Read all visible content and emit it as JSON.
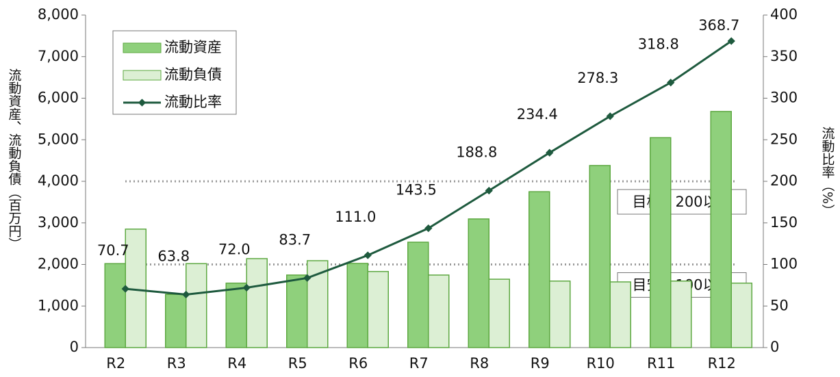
{
  "chart_data": {
    "type": "bar_line",
    "categories": [
      "R2",
      "R3",
      "R4",
      "R5",
      "R6",
      "R7",
      "R8",
      "R9",
      "R10",
      "R11",
      "R12"
    ],
    "series": [
      {
        "name": "流動資産",
        "type": "bar",
        "color": "#8fd07c",
        "values": [
          2020,
          1280,
          1550,
          1745,
          2025,
          2535,
          3095,
          3750,
          4380,
          5050,
          5680
        ]
      },
      {
        "name": "流動負債",
        "type": "bar",
        "color": "#dcefd4",
        "values": [
          2850,
          2020,
          2140,
          2090,
          1830,
          1745,
          1645,
          1600,
          1580,
          1600,
          1550
        ]
      },
      {
        "name": "流動比率",
        "type": "line",
        "axis": "y2",
        "color": "#1e5a3e",
        "values": [
          70.7,
          63.8,
          72.0,
          83.7,
          111.0,
          143.5,
          188.8,
          234.4,
          278.3,
          318.8,
          368.7
        ],
        "value_labels": [
          "70.7",
          "63.8",
          "72.0",
          "83.7",
          "111.0",
          "143.5",
          "188.8",
          "234.4",
          "278.3",
          "318.8",
          "368.7"
        ]
      }
    ],
    "ylabel": "流動資産、流動負債（百万円）",
    "y2label": "流動比率（%）",
    "ylim": [
      0,
      8000
    ],
    "yticks": [
      0,
      {
        "value": 1000,
        "label": "1,000"
      },
      {
        "value": 2000,
        "label": "2,000"
      },
      {
        "value": 3000,
        "label": "3,000"
      },
      {
        "value": 4000,
        "label": "4,000"
      },
      {
        "value": 5000,
        "label": "5,000"
      },
      {
        "value": 6000,
        "label": "6,000"
      },
      {
        "value": 7000,
        "label": "7,000"
      },
      {
        "value": 8000,
        "label": "8,000"
      }
    ],
    "y2lim": [
      0,
      400
    ],
    "y2ticks": [
      0,
      50,
      100,
      150,
      200,
      250,
      300,
      350,
      400
    ],
    "reference_lines": [
      {
        "value": 200,
        "label": "目標：200以上"
      },
      {
        "value": 100,
        "label": "目安：100以上"
      }
    ],
    "legend": "upper left"
  }
}
